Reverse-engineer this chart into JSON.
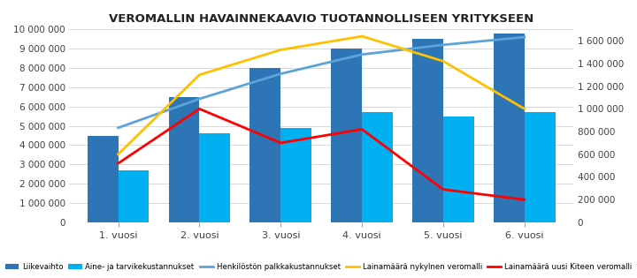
{
  "title": "VEROMALLIN HAVAINNEKAAVIO TUOTANNOLLISEEN YRITYKSEEN",
  "categories": [
    "1. vuosi",
    "2. vuosi",
    "3. vuosi",
    "4. vuosi",
    "5. vuosi",
    "6. vuosi"
  ],
  "liikevaihto": [
    4500000,
    6500000,
    8000000,
    9000000,
    9500000,
    9800000
  ],
  "aine_tarvike": [
    2700000,
    4600000,
    4900000,
    5700000,
    5500000,
    5700000
  ],
  "palkkakustannukset": [
    4900000,
    6400000,
    7700000,
    8700000,
    9200000,
    9600000
  ],
  "laina_nykymalli": [
    600000,
    1300000,
    1520000,
    1640000,
    1420000,
    1000000
  ],
  "laina_kiteen": [
    520000,
    1000000,
    700000,
    820000,
    290000,
    200000
  ],
  "bar_color_liike": "#2E75B6",
  "bar_color_aine": "#00B0F0",
  "line_color_palkka": "#5BA3D9",
  "line_color_nykymalli": "#FFC000",
  "line_color_kiteen": "#FF0000",
  "bg_color": "#FFFFFF",
  "grid_color": "#D9D9D9",
  "ylim_left": [
    0,
    10000000
  ],
  "ylim_right": [
    0,
    1700000
  ],
  "yticks_left": [
    0,
    1000000,
    2000000,
    3000000,
    4000000,
    5000000,
    6000000,
    7000000,
    8000000,
    9000000,
    10000000
  ],
  "yticks_right": [
    0,
    200000,
    400000,
    600000,
    800000,
    1000000,
    1200000,
    1400000,
    1600000
  ],
  "legend_labels": [
    "Liikevaihto",
    "Aine- ja tarvikekustannukset",
    "Henkilöstön palkkakustannukset",
    "Lainamäärä nykylnen veromalli",
    "Lainamäärä uusi Kiteen veromalli"
  ],
  "bar_width": 0.38,
  "figsize": [
    7.2,
    3.15
  ],
  "dpi": 100
}
